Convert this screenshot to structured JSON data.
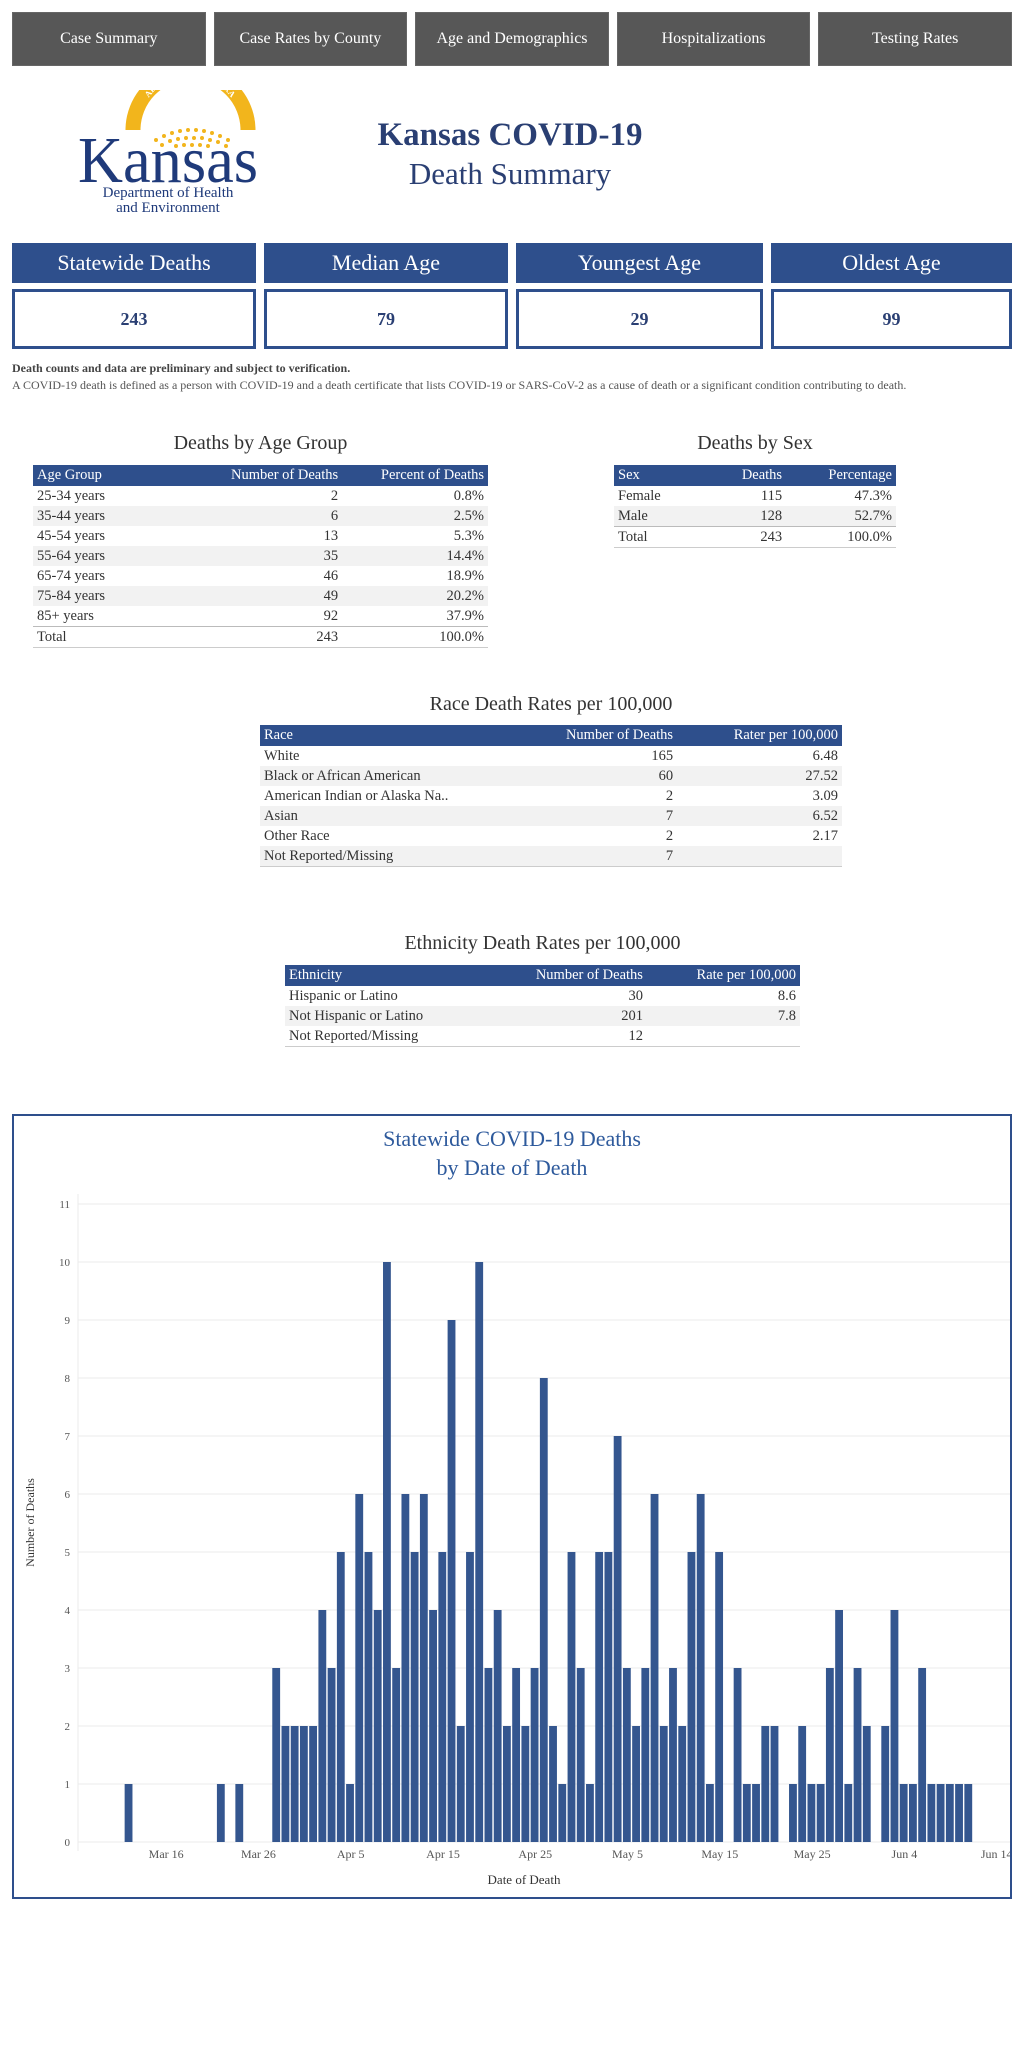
{
  "nav": {
    "tabs": [
      "Case Summary",
      "Case Rates by County",
      "Age and Demographics",
      "Hospitalizations",
      "Testing Rates"
    ]
  },
  "logo": {
    "state": "Kansas",
    "motto": "AD ASTRA PER ASPERA",
    "dept_line1": "Department of Health",
    "dept_line2": "and Environment"
  },
  "header": {
    "title": "Kansas COVID-19",
    "subtitle": "Death Summary"
  },
  "stats": [
    {
      "label": "Statewide Deaths",
      "value": "243"
    },
    {
      "label": "Median Age",
      "value": "79"
    },
    {
      "label": "Youngest Age",
      "value": "29"
    },
    {
      "label": "Oldest Age",
      "value": "99"
    }
  ],
  "notes": {
    "bold": "Death counts and data are preliminary and subject to verification.",
    "definition": "A COVID-19 death is defined as a person with COVID-19 and a death certificate that lists COVID-19 or SARS-CoV-2 as a cause of death or a significant condition contributing to death."
  },
  "age_table": {
    "title": "Deaths by Age Group",
    "headers": [
      "Age Group",
      "Number of Deaths",
      "Percent of Deaths"
    ],
    "rows": [
      [
        "25-34 years",
        "2",
        "0.8%"
      ],
      [
        "35-44 years",
        "6",
        "2.5%"
      ],
      [
        "45-54 years",
        "13",
        "5.3%"
      ],
      [
        "55-64 years",
        "35",
        "14.4%"
      ],
      [
        "65-74 years",
        "46",
        "18.9%"
      ],
      [
        "75-84 years",
        "49",
        "20.2%"
      ],
      [
        "85+ years",
        "92",
        "37.9%"
      ]
    ],
    "total": [
      "Total",
      "243",
      "100.0%"
    ]
  },
  "sex_table": {
    "title": "Deaths by Sex",
    "headers": [
      "Sex",
      "Deaths",
      "Percentage"
    ],
    "rows": [
      [
        "Female",
        "115",
        "47.3%"
      ],
      [
        "Male",
        "128",
        "52.7%"
      ]
    ],
    "total": [
      "Total",
      "243",
      "100.0%"
    ]
  },
  "race_table": {
    "title": "Race Death Rates per 100,000",
    "headers": [
      "Race",
      "Number of Deaths",
      "Rater per 100,000"
    ],
    "rows": [
      [
        "White",
        "165",
        "6.48"
      ],
      [
        "Black or African American",
        "60",
        "27.52"
      ],
      [
        "American Indian or Alaska Na..",
        "2",
        "3.09"
      ],
      [
        "Asian",
        "7",
        "6.52"
      ],
      [
        "Other Race",
        "2",
        "2.17"
      ],
      [
        "Not Reported/Missing",
        "7",
        ""
      ]
    ]
  },
  "ethnicity_table": {
    "title": "Ethnicity Death Rates per 100,000",
    "headers": [
      "Ethnicity",
      "Number of Deaths",
      "Rate per 100,000"
    ],
    "rows": [
      [
        "Hispanic or Latino",
        "30",
        "8.6"
      ],
      [
        "Not Hispanic or Latino",
        "201",
        "7.8"
      ],
      [
        "Not Reported/Missing",
        "12",
        ""
      ]
    ]
  },
  "chart_data": {
    "type": "bar",
    "title": "Statewide COVID-19 Deaths",
    "subtitle": "by Date of Death",
    "xlabel": "Date of Death",
    "ylabel": "Number of Deaths",
    "ylim": [
      0,
      11
    ],
    "yticks": [
      0,
      1,
      2,
      3,
      4,
      5,
      6,
      7,
      8,
      9,
      10,
      11
    ],
    "x_start": "Mar 7",
    "x_days": 104,
    "xtick_labels": [
      {
        "day": 9,
        "label": "Mar 16"
      },
      {
        "day": 19,
        "label": "Mar 26"
      },
      {
        "day": 29,
        "label": "Apr 5"
      },
      {
        "day": 39,
        "label": "Apr 15"
      },
      {
        "day": 49,
        "label": "Apr 25"
      },
      {
        "day": 59,
        "label": "May 5"
      },
      {
        "day": 69,
        "label": "May 15"
      },
      {
        "day": 79,
        "label": "May 25"
      },
      {
        "day": 89,
        "label": "Jun 4"
      },
      {
        "day": 99,
        "label": "Jun 14"
      }
    ],
    "bar_color": "#34568f",
    "values": [
      0,
      0,
      0,
      0,
      0,
      1,
      0,
      0,
      0,
      0,
      0,
      0,
      0,
      0,
      0,
      1,
      0,
      1,
      0,
      0,
      0,
      3,
      2,
      2,
      2,
      2,
      4,
      3,
      5,
      1,
      6,
      5,
      4,
      10,
      3,
      6,
      5,
      6,
      4,
      5,
      9,
      2,
      5,
      10,
      3,
      4,
      2,
      3,
      2,
      3,
      8,
      2,
      1,
      5,
      3,
      1,
      5,
      5,
      7,
      3,
      2,
      3,
      6,
      2,
      3,
      2,
      5,
      6,
      1,
      5,
      0,
      3,
      1,
      1,
      2,
      2,
      0,
      1,
      2,
      1,
      1,
      3,
      4,
      1,
      3,
      2,
      0,
      2,
      4,
      1,
      1,
      3,
      1,
      1,
      1,
      1,
      1,
      0,
      0,
      0,
      0,
      0,
      0,
      0
    ]
  }
}
